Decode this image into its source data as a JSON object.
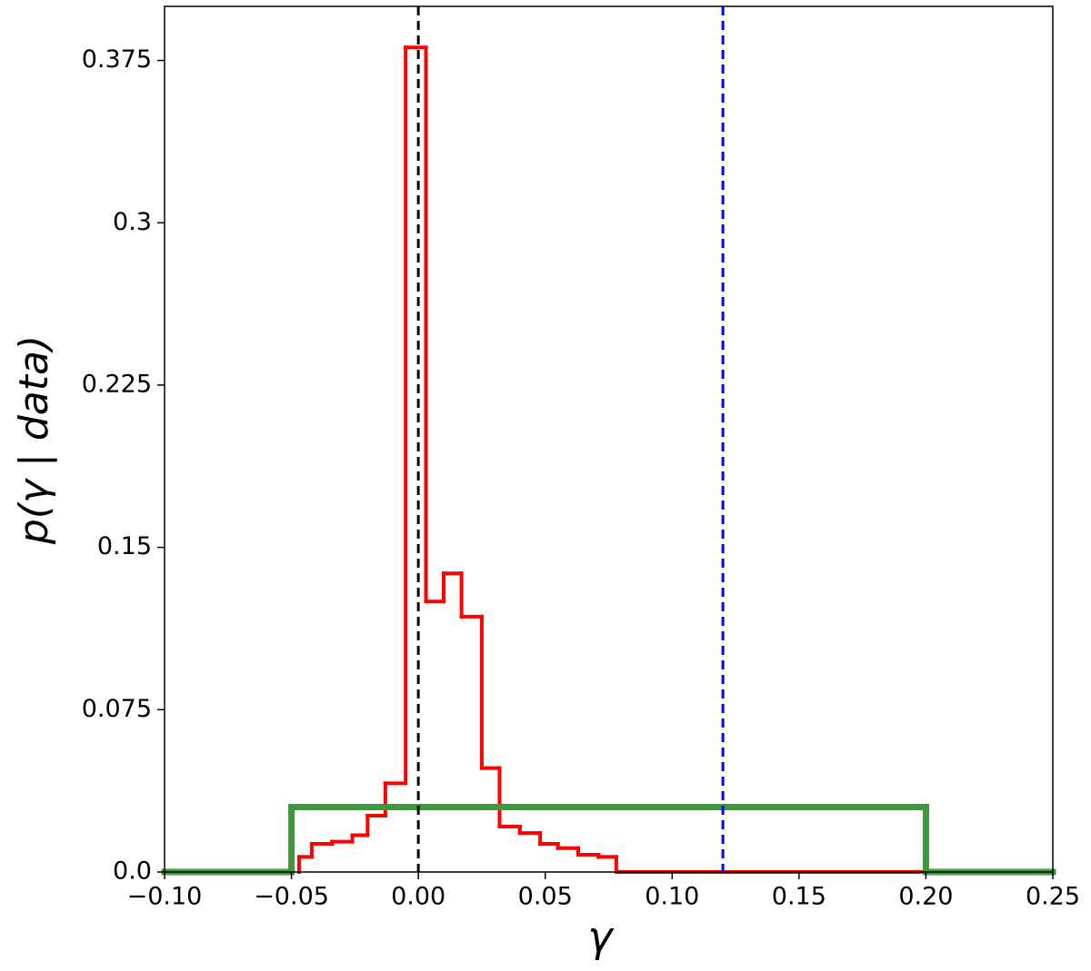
{
  "chart_data": {
    "type": "step",
    "xlabel": "γ",
    "ylabel": "p(γ | data)",
    "xlim": [
      -0.1,
      0.25
    ],
    "ylim": [
      0,
      0.4
    ],
    "xticks": [
      {
        "value": -0.1,
        "label": "−0.10"
      },
      {
        "value": -0.05,
        "label": "−0.05"
      },
      {
        "value": 0,
        "label": "0.00"
      },
      {
        "value": 0.05,
        "label": "0.05"
      },
      {
        "value": 0.1,
        "label": "0.10"
      },
      {
        "value": 0.15,
        "label": "0.15"
      },
      {
        "value": 0.2,
        "label": "0.20"
      },
      {
        "value": 0.25,
        "label": "0.25"
      }
    ],
    "yticks": [
      {
        "value": 0,
        "label": "0.0"
      },
      0.075,
      0.15,
      0.225,
      0.3,
      0.375
    ],
    "series": [
      {
        "color": "#ff0000",
        "width": 4,
        "bins": [
          -0.047,
          -0.042,
          -0.034,
          -0.026,
          -0.02,
          -0.013,
          -0.005,
          0.003,
          0.01,
          0.017,
          0.025,
          0.032,
          0.04,
          0.048,
          0.055,
          0.063,
          0.071,
          0.078,
          0.2
        ],
        "values": [
          0.007,
          0.013,
          0.014,
          0.017,
          0.026,
          0.041,
          0.381,
          0.125,
          0.138,
          0.118,
          0.048,
          0.021,
          0.018,
          0.013,
          0.011,
          0.008,
          0.007,
          0
        ]
      },
      {
        "color": "#3a9a3a",
        "width": 7,
        "bins": [
          -0.1,
          -0.05,
          0.2,
          0.25
        ],
        "values": [
          0,
          0.03,
          0
        ]
      }
    ],
    "vlines": [
      {
        "x": 0,
        "color": "#000000"
      },
      {
        "x": 0.12,
        "color": "#0000ff"
      }
    ]
  }
}
